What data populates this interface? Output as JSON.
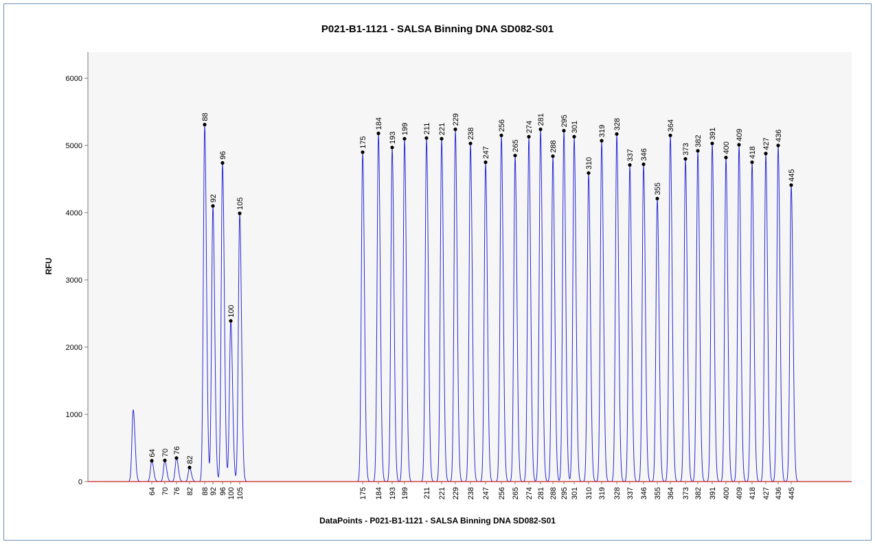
{
  "chart_data": {
    "type": "line",
    "title": "P021-B1-1121 - SALSA Binning DNA SD082-S01",
    "xlabel": "DataPoints - P021-B1-1121 - SALSA Binning DNA SD082-S01",
    "ylabel": "RFU",
    "ylim": [
      0,
      6300
    ],
    "yticks": [
      0,
      1000,
      2000,
      3000,
      4000,
      5000,
      6000
    ],
    "y_tick_labels": [
      "0",
      "1000",
      "2000",
      "3000",
      "4000",
      "5000",
      "6000"
    ],
    "grid": false,
    "colors": {
      "trace": "#2727d4",
      "baseline": "#cc1f1f",
      "peak_marker": "#000000",
      "plot_background": "#f6f6f6",
      "axis": "#7a7a7a",
      "frame": "#6b8fb8"
    },
    "x_tick_labels": [
      "64",
      "70",
      "76",
      "82",
      "88",
      "92",
      "96",
      "100",
      "105",
      "175",
      "184",
      "193",
      "199",
      "211",
      "221",
      "229",
      "238",
      "247",
      "256",
      "265",
      "274",
      "281",
      "288",
      "295",
      "301",
      "310",
      "319",
      "328",
      "337",
      "346",
      "355",
      "364",
      "373",
      "382",
      "391",
      "400",
      "409",
      "418",
      "427",
      "436",
      "445"
    ],
    "unlabeled_peaks": [
      1070
    ],
    "peaks": [
      {
        "label": "64",
        "value": 310
      },
      {
        "label": "70",
        "value": 315
      },
      {
        "label": "76",
        "value": 350
      },
      {
        "label": "82",
        "value": 210
      },
      {
        "label": "88",
        "value": 5310
      },
      {
        "label": "92",
        "value": 4100
      },
      {
        "label": "96",
        "value": 4740
      },
      {
        "label": "100",
        "value": 2390
      },
      {
        "label": "105",
        "value": 3990
      },
      {
        "label": "175",
        "value": 4900
      },
      {
        "label": "184",
        "value": 5180
      },
      {
        "label": "193",
        "value": 4970
      },
      {
        "label": "199",
        "value": 5100
      },
      {
        "label": "211",
        "value": 5110
      },
      {
        "label": "221",
        "value": 5100
      },
      {
        "label": "229",
        "value": 5240
      },
      {
        "label": "238",
        "value": 5030
      },
      {
        "label": "247",
        "value": 4750
      },
      {
        "label": "256",
        "value": 5150
      },
      {
        "label": "265",
        "value": 4850
      },
      {
        "label": "274",
        "value": 5130
      },
      {
        "label": "281",
        "value": 5240
      },
      {
        "label": "288",
        "value": 4840
      },
      {
        "label": "295",
        "value": 5220
      },
      {
        "label": "301",
        "value": 5130
      },
      {
        "label": "310",
        "value": 4590
      },
      {
        "label": "319",
        "value": 5070
      },
      {
        "label": "328",
        "value": 5170
      },
      {
        "label": "337",
        "value": 4710
      },
      {
        "label": "346",
        "value": 4720
      },
      {
        "label": "355",
        "value": 4210
      },
      {
        "label": "364",
        "value": 5150
      },
      {
        "label": "373",
        "value": 4800
      },
      {
        "label": "382",
        "value": 4920
      },
      {
        "label": "391",
        "value": 5030
      },
      {
        "label": "400",
        "value": 4820
      },
      {
        "label": "409",
        "value": 5010
      },
      {
        "label": "418",
        "value": 4750
      },
      {
        "label": "427",
        "value": 4880
      },
      {
        "label": "436",
        "value": 5000
      },
      {
        "label": "445",
        "value": 4410
      }
    ]
  }
}
